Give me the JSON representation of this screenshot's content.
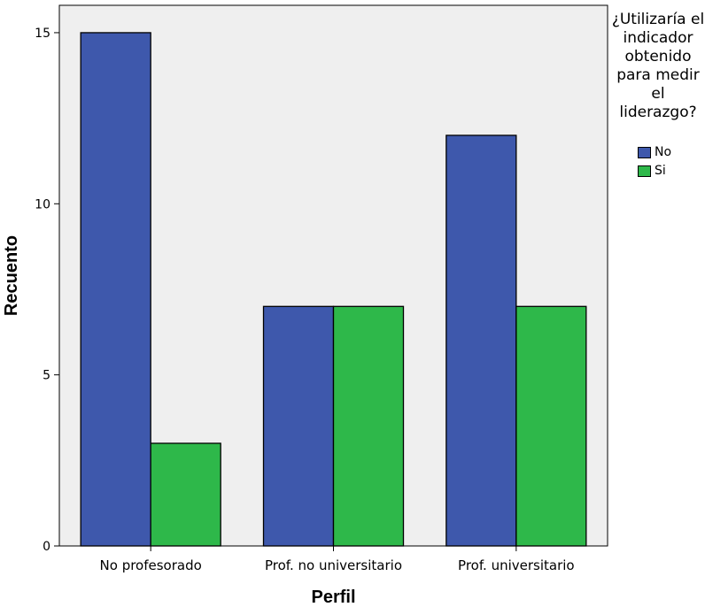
{
  "chart_data": {
    "type": "bar",
    "title": "",
    "xlabel": "Perfil",
    "ylabel": "Recuento",
    "categories": [
      "No profesorado",
      "Prof. no universitario",
      "Prof. universitario"
    ],
    "series": [
      {
        "name": "No",
        "values": [
          15,
          7,
          12
        ],
        "color": "#3e58ac"
      },
      {
        "name": "Si",
        "values": [
          3,
          7,
          7
        ],
        "color": "#2eb84a"
      }
    ],
    "ylim": [
      0,
      15.8
    ],
    "yticks": [
      0,
      5,
      10,
      15
    ],
    "grid": false,
    "plot_background": "#efefef",
    "legend": {
      "title": "¿Utilizaría el indicador obtenido para medir el liderazgo?",
      "placement": "top-right"
    }
  }
}
